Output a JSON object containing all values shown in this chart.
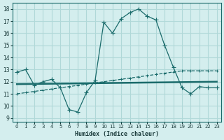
{
  "xlabel": "Humidex (Indice chaleur)",
  "bg_color": "#d4eeee",
  "grid_color": "#b0d8d8",
  "line_color": "#1a6b6b",
  "x_ticks": [
    0,
    1,
    2,
    3,
    4,
    5,
    6,
    7,
    8,
    9,
    10,
    11,
    12,
    13,
    14,
    15,
    16,
    17,
    18,
    19,
    20,
    21,
    22,
    23
  ],
  "y_ticks": [
    9,
    10,
    11,
    12,
    13,
    14,
    15,
    16,
    17,
    18
  ],
  "xlim": [
    -0.5,
    23.5
  ],
  "ylim": [
    8.7,
    18.5
  ],
  "series1_x": [
    0,
    1,
    2,
    3,
    4,
    5,
    6,
    7,
    8,
    9,
    10,
    11,
    12,
    13,
    14,
    15,
    16,
    17,
    18,
    19,
    20,
    21,
    22,
    23
  ],
  "series1_y": [
    12.8,
    13.0,
    11.7,
    12.0,
    12.2,
    11.5,
    9.7,
    9.5,
    11.1,
    12.1,
    16.9,
    16.0,
    17.2,
    17.7,
    18.0,
    17.4,
    17.1,
    15.0,
    13.2,
    11.5,
    11.0,
    11.6,
    11.5,
    11.5
  ],
  "series2_x": [
    0,
    1,
    2,
    3,
    4,
    5,
    6,
    7,
    8,
    9,
    10,
    11,
    12,
    13,
    14,
    15,
    16,
    17,
    18,
    19,
    20,
    21,
    22,
    23
  ],
  "series2_y": [
    11.0,
    11.1,
    11.2,
    11.3,
    11.4,
    11.5,
    11.6,
    11.7,
    11.8,
    11.9,
    12.0,
    12.1,
    12.2,
    12.3,
    12.4,
    12.5,
    12.6,
    12.7,
    12.8,
    12.9,
    12.9,
    12.9,
    12.9,
    12.9
  ],
  "series3_x": [
    0,
    23
  ],
  "series3_y": [
    11.8,
    12.0
  ]
}
